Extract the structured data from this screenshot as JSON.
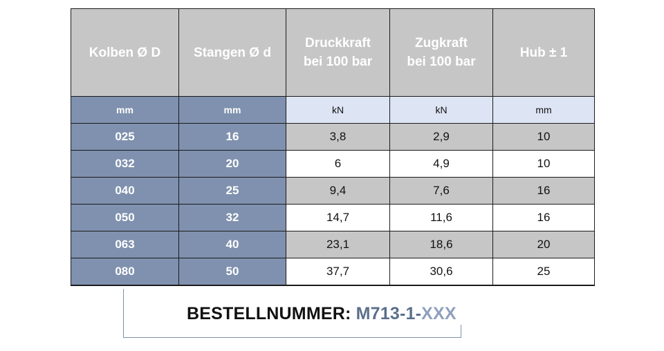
{
  "table": {
    "headers": [
      "Kolben Ø D",
      "Stangen Ø d",
      "Druckkraft\nbei 100 bar",
      "Zugkraft\nbei 100 bar",
      "Hub ± 1"
    ],
    "units": [
      "mm",
      "mm",
      "kN",
      "kN",
      "mm"
    ],
    "rows": [
      [
        "025",
        "16",
        "3,8",
        "2,9",
        "10"
      ],
      [
        "032",
        "20",
        "6",
        "4,9",
        "10"
      ],
      [
        "040",
        "25",
        "9,4",
        "7,6",
        "16"
      ],
      [
        "050",
        "32",
        "14,7",
        "11,6",
        "16"
      ],
      [
        "063",
        "40",
        "23,1",
        "18,6",
        "20"
      ],
      [
        "080",
        "50",
        "37,7",
        "30,6",
        "25"
      ]
    ]
  },
  "order": {
    "label": "BESTELLNUMMER: ",
    "prefix": "M713-1-",
    "suffix": "XXX"
  },
  "colors": {
    "header_bg": "#c6c6c6",
    "key_column_bg": "#7f91ae",
    "unit_row_light_bg": "#dde4f4",
    "shaded_row_bg": "#c6c6c6",
    "order_code": "#5b6f8c",
    "order_suffix": "#8ea0be"
  }
}
